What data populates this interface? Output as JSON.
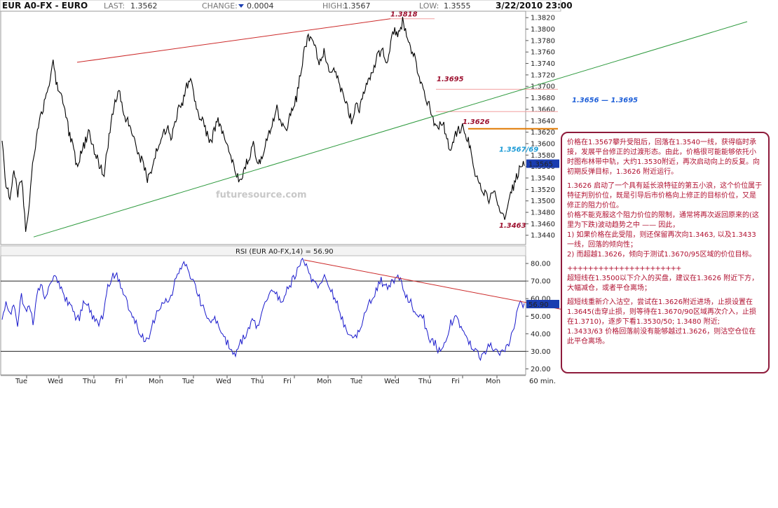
{
  "header": {
    "symbol": "EUR A0-FX - EURO",
    "last_label": "LAST:",
    "last_value": "1.3562",
    "change_label": "CHANGE:",
    "change_value": "0.0004",
    "high_label": "HIGH:",
    "high_value": "1.3567",
    "low_label": "LOW:",
    "low_value": "1.3555",
    "datetime": "3/22/2010 23:00"
  },
  "colors": {
    "price": "#000000",
    "rsi": "#1a1acc",
    "red_line": "#cc2a2a",
    "green_line": "#2e9a3e",
    "orange_line": "#e07800",
    "note_border": "#8e1b3b",
    "note_text": "#b01030",
    "label_blue": "#1e5fd8"
  },
  "chart_data": [
    {
      "type": "line",
      "name": "EUR/USD 60 min price",
      "ylim": [
        1.3425,
        1.383
      ],
      "y_ticks": [
        "1.3440",
        "1.3460",
        "1.3480",
        "1.3500",
        "1.3520",
        "1.3540",
        "1.3560",
        "1.3580",
        "1.3600",
        "1.3620",
        "1.3640",
        "1.3660",
        "1.3680",
        "1.3700",
        "1.3720",
        "1.3740",
        "1.3760",
        "1.3780",
        "1.3800",
        "1.3820"
      ],
      "x_labels": [
        "Tue",
        "Wed",
        "Thu",
        "Fri",
        "Mon",
        "Tue",
        "Wed",
        "Thu",
        "Fri",
        "Mon",
        "Tue",
        "Wed",
        "Thu",
        "Fri",
        "Mon",
        "60 min."
      ],
      "last_price_tag": "1.3565",
      "series": [
        {
          "values": [
            1.3605,
            1.353,
            1.35,
            1.355,
            1.351,
            1.354,
            1.345,
            1.35,
            1.358,
            1.362,
            1.365,
            1.368,
            1.37,
            1.3742,
            1.37,
            1.368,
            1.366,
            1.362,
            1.36,
            1.356,
            1.358,
            1.36,
            1.362,
            1.36,
            1.358,
            1.356,
            1.355,
            1.36,
            1.365,
            1.368,
            1.369,
            1.365,
            1.364,
            1.362,
            1.36,
            1.358,
            1.356,
            1.354,
            1.355,
            1.358,
            1.36,
            1.362,
            1.363,
            1.361,
            1.364,
            1.366,
            1.367,
            1.37,
            1.372,
            1.368,
            1.365,
            1.364,
            1.362,
            1.36,
            1.362,
            1.364,
            1.362,
            1.36,
            1.358,
            1.356,
            1.354,
            1.3545,
            1.356,
            1.358,
            1.36,
            1.356,
            1.357,
            1.36,
            1.362,
            1.364,
            1.366,
            1.364,
            1.362,
            1.364,
            1.366,
            1.368,
            1.372,
            1.376,
            1.379,
            1.378,
            1.376,
            1.374,
            1.376,
            1.374,
            1.372,
            1.373,
            1.37,
            1.368,
            1.366,
            1.364,
            1.367,
            1.366,
            1.369,
            1.37,
            1.372,
            1.374,
            1.376,
            1.376,
            1.374,
            1.378,
            1.38,
            1.379,
            1.3815,
            1.379,
            1.377,
            1.375,
            1.372,
            1.37,
            1.368,
            1.366,
            1.364,
            1.362,
            1.364,
            1.362,
            1.358,
            1.361,
            1.362,
            1.363,
            1.362,
            1.36,
            1.356,
            1.354,
            1.352,
            1.351,
            1.35,
            1.352,
            1.35,
            1.348,
            1.3463,
            1.35,
            1.352,
            1.354,
            1.356,
            1.3565
          ]
        }
      ],
      "lines": [
        {
          "name": "resistance-line",
          "color": "red"
        },
        {
          "name": "support-line",
          "color": "green"
        },
        {
          "name": "level-1.3626",
          "color": "orange"
        }
      ],
      "annotations": [
        "1.3818",
        "1.3695",
        "1.3626",
        "1.3567/69",
        "1.3463",
        "1.3656 — 1.3695"
      ]
    },
    {
      "type": "line",
      "title": "RSI (EUR A0-FX,14) = 56.90",
      "ylim": [
        17,
        84
      ],
      "y_ticks": [
        "20.00",
        "30.00",
        "40.00",
        "50.00",
        "60.00",
        "70.00",
        "80.00"
      ],
      "reference_levels": [
        30,
        70
      ],
      "last_value_tag": "56.90",
      "series": [
        {
          "values": [
            48,
            60,
            50,
            56,
            44,
            62,
            52,
            58,
            46,
            64,
            68,
            62,
            66,
            70,
            74,
            66,
            62,
            58,
            54,
            50,
            48,
            58,
            56,
            52,
            48,
            46,
            50,
            64,
            70,
            74,
            72,
            66,
            60,
            54,
            48,
            44,
            40,
            34,
            38,
            46,
            52,
            56,
            60,
            58,
            64,
            72,
            76,
            80,
            78,
            70,
            66,
            60,
            54,
            50,
            46,
            48,
            44,
            40,
            36,
            32,
            28,
            32,
            36,
            40,
            44,
            48,
            44,
            52,
            58,
            62,
            66,
            62,
            58,
            62,
            66,
            70,
            74,
            80,
            82,
            76,
            72,
            68,
            66,
            72,
            70,
            66,
            60,
            56,
            48,
            42,
            38,
            36,
            40,
            46,
            52,
            58,
            62,
            66,
            70,
            68,
            66,
            70,
            72,
            70,
            64,
            60,
            56,
            52,
            50,
            48,
            40,
            36,
            34,
            30,
            32,
            38,
            46,
            50,
            46,
            42,
            38,
            34,
            30,
            28,
            26,
            30,
            34,
            32,
            30,
            28,
            30,
            34,
            42,
            50,
            58,
            56.9
          ]
        }
      ],
      "lines": [
        {
          "name": "rsi-trendline",
          "color": "red"
        }
      ]
    }
  ],
  "watermark": "futuresource.com",
  "note": {
    "p1": "价格在1.3567攀升受阻后，回落在1.3540一线，获得临时承接，发展平台修正的过渡形态。由此，价格很可能能够依托小时图布林带中轨，大约1.3530附近，再次启动向上的反复。向初期反弹目标，1.3626 附近运行。",
    "p2": "1.3626 启动了一个具有延长浪特征的第五小浪，这个价位属于特征判别价位，既是引导后市价格向上修正的目标价位，又是修正的阻力价位。",
    "p3": "价格不能克服这个阻力价位的限制，通常将再次返回原来的(这里为下跌)波动趋势之中 —— 因此，",
    "p4": "1) 如果价格在此受阻，则还保留再次向1.3463, 以及1.3433 一线，回落的倾向性；",
    "p5": "2) 而超越1.3626，倾向于测试1.3670/95区域的价位目标。",
    "separator": "++++++++++++++++++++++",
    "p6": "超短线在1.3500以下介入的买盘，建议在1.3626 附近下方，大幅减仓，或者平仓离场；",
    "p7": "超短线重新介入沽空，尝试在1.3626附近进场，止损设置在1.3645(击穿止损，则等待在1.3670/90区域再次介入，止损在1.3710)，逐步下看1.3530/50; 1.3480 附近;",
    "p8": "1.3433/63 价格回落前没有能够越过1.3626，则沽空仓位在此平仓离场。"
  }
}
